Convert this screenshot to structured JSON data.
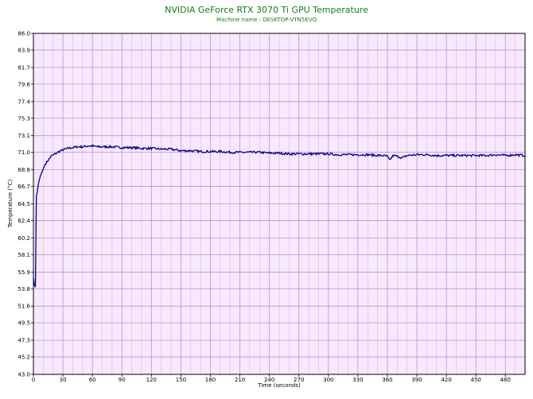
{
  "chart_data": {
    "type": "line",
    "title": "NVIDIA GeForce RTX 3070 Ti GPU Temperature",
    "subtitle": "Machine name : DESKTOP-VTN5EVQ",
    "xlabel": "Time (seconds)",
    "ylabel": "Temperature (°C)",
    "xlim": [
      0,
      500
    ],
    "ylim": [
      43.0,
      86.0
    ],
    "x_ticks": [
      "0",
      "30",
      "60",
      "90",
      "120",
      "150",
      "180",
      "210",
      "240",
      "270",
      "300",
      "330",
      "360",
      "390",
      "420",
      "450",
      "480"
    ],
    "x_tick_values": [
      0,
      30,
      60,
      90,
      120,
      150,
      180,
      210,
      240,
      270,
      300,
      330,
      360,
      390,
      420,
      450,
      480
    ],
    "y_ticks": [
      "43.0",
      "45.2",
      "47.3",
      "49.5",
      "51.6",
      "53.8",
      "55.9",
      "58.1",
      "60.2",
      "62.4",
      "64.5",
      "66.7",
      "68.8",
      "71.0",
      "73.1",
      "75.3",
      "77.4",
      "79.6",
      "81.7",
      "83.9",
      "86.0"
    ],
    "y_tick_values": [
      43.0,
      45.2,
      47.3,
      49.5,
      51.6,
      53.8,
      55.9,
      58.1,
      60.2,
      62.4,
      64.5,
      66.7,
      68.8,
      71.0,
      73.1,
      75.3,
      77.4,
      79.6,
      81.7,
      83.9,
      86.0
    ],
    "grid": true,
    "colors": {
      "title": "#1a7a1a",
      "line": "#00008b",
      "plot_background": "#f8e8ff",
      "grid_major": "#c090c0",
      "grid_minor": "#d8b8d8"
    },
    "series": [
      {
        "x": [
          0,
          1,
          2,
          3,
          4,
          5,
          6,
          7,
          8,
          10,
          12,
          15,
          18,
          22,
          26,
          30,
          35,
          40,
          45,
          50,
          55,
          60,
          65,
          70,
          80,
          90,
          100,
          110,
          120,
          130,
          140,
          150,
          160,
          170,
          180,
          190,
          200,
          210,
          220,
          230,
          240,
          250,
          260,
          270,
          280,
          290,
          300,
          310,
          320,
          330,
          340,
          350,
          355,
          360,
          362,
          364,
          366,
          370,
          375,
          380,
          390,
          400,
          410,
          420,
          430,
          440,
          450,
          460,
          470,
          480,
          490,
          500
        ],
        "y": [
          55.2,
          54.3,
          54.0,
          65.5,
          66.0,
          67.0,
          67.5,
          68.0,
          68.3,
          68.9,
          69.5,
          70.0,
          70.5,
          70.8,
          71.1,
          71.3,
          71.5,
          71.6,
          71.7,
          71.7,
          71.8,
          71.8,
          71.7,
          71.7,
          71.7,
          71.6,
          71.6,
          71.5,
          71.5,
          71.4,
          71.4,
          71.2,
          71.2,
          71.1,
          71.1,
          71.1,
          71.0,
          71.0,
          71.0,
          71.0,
          70.9,
          70.9,
          70.8,
          70.8,
          70.8,
          70.8,
          70.8,
          70.7,
          70.7,
          70.7,
          70.7,
          70.6,
          70.6,
          70.5,
          70.0,
          70.3,
          70.6,
          70.5,
          70.3,
          70.6,
          70.7,
          70.7,
          70.6,
          70.6,
          70.6,
          70.6,
          70.6,
          70.6,
          70.7,
          70.6,
          70.7,
          70.6
        ]
      }
    ]
  }
}
